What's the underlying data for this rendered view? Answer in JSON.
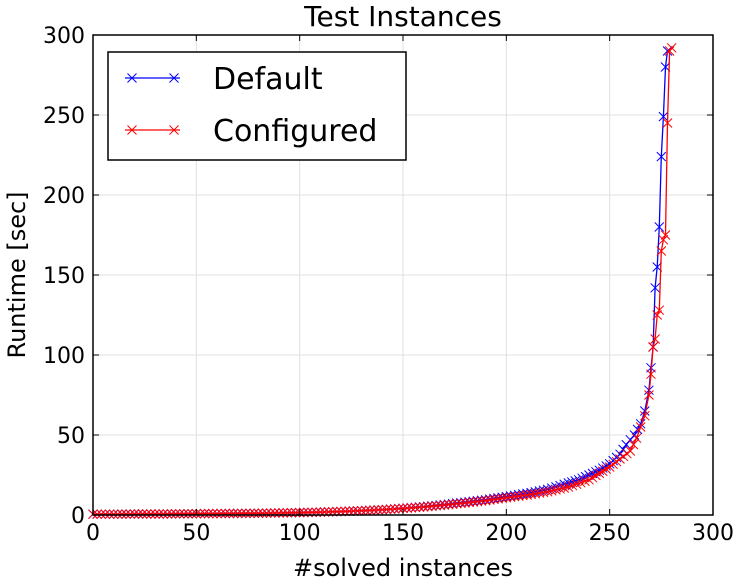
{
  "chart_data": {
    "type": "line",
    "title": "Test Instances",
    "xlabel": "#solved instances",
    "ylabel": "Runtime [sec]",
    "xlim": [
      0,
      300
    ],
    "ylim": [
      0,
      300
    ],
    "xticks": [
      0,
      50,
      100,
      150,
      200,
      250,
      300
    ],
    "yticks": [
      0,
      50,
      100,
      150,
      200,
      250,
      300
    ],
    "grid": true,
    "legend_position": "top-left",
    "marker": "x",
    "series": [
      {
        "name": "Default",
        "color": "#0000ff",
        "points": [
          [
            0,
            0.5
          ],
          [
            10,
            0.5
          ],
          [
            20,
            0.6
          ],
          [
            30,
            0.6
          ],
          [
            40,
            0.7
          ],
          [
            50,
            0.8
          ],
          [
            60,
            0.9
          ],
          [
            70,
            1.0
          ],
          [
            80,
            1.1
          ],
          [
            90,
            1.3
          ],
          [
            100,
            1.5
          ],
          [
            110,
            1.8
          ],
          [
            120,
            2.2
          ],
          [
            130,
            2.7
          ],
          [
            140,
            3.3
          ],
          [
            150,
            4.2
          ],
          [
            160,
            5.2
          ],
          [
            170,
            6.5
          ],
          [
            180,
            8
          ],
          [
            190,
            9.5
          ],
          [
            200,
            11.5
          ],
          [
            210,
            13.5
          ],
          [
            220,
            16
          ],
          [
            230,
            20
          ],
          [
            235,
            22
          ],
          [
            240,
            25
          ],
          [
            245,
            28
          ],
          [
            250,
            32
          ],
          [
            255,
            38
          ],
          [
            258,
            44
          ],
          [
            262,
            50
          ],
          [
            265,
            57
          ],
          [
            267,
            65
          ],
          [
            269,
            78
          ],
          [
            270,
            92
          ],
          [
            271,
            105
          ],
          [
            272,
            142
          ],
          [
            273,
            155
          ],
          [
            274,
            180
          ],
          [
            275,
            224
          ],
          [
            276,
            249
          ],
          [
            277,
            280
          ],
          [
            278,
            290
          ]
        ]
      },
      {
        "name": "Configured",
        "color": "#ff0000",
        "points": [
          [
            0,
            0.5
          ],
          [
            10,
            0.5
          ],
          [
            20,
            0.6
          ],
          [
            30,
            0.6
          ],
          [
            40,
            0.7
          ],
          [
            50,
            0.8
          ],
          [
            60,
            0.9
          ],
          [
            70,
            1.0
          ],
          [
            80,
            1.1
          ],
          [
            90,
            1.3
          ],
          [
            100,
            1.5
          ],
          [
            110,
            1.8
          ],
          [
            120,
            2.2
          ],
          [
            130,
            2.7
          ],
          [
            140,
            3.3
          ],
          [
            150,
            4.1
          ],
          [
            160,
            5
          ],
          [
            170,
            6.2
          ],
          [
            180,
            7.5
          ],
          [
            190,
            9
          ],
          [
            200,
            10.8
          ],
          [
            210,
            12.5
          ],
          [
            220,
            14.5
          ],
          [
            230,
            17.5
          ],
          [
            240,
            22
          ],
          [
            245,
            26
          ],
          [
            250,
            30
          ],
          [
            255,
            35
          ],
          [
            260,
            40
          ],
          [
            263,
            48
          ],
          [
            265,
            55
          ],
          [
            267,
            62
          ],
          [
            269,
            75
          ],
          [
            270,
            88
          ],
          [
            271,
            105
          ],
          [
            272,
            110
          ],
          [
            273,
            125
          ],
          [
            274,
            128
          ],
          [
            275,
            165
          ],
          [
            276,
            172
          ],
          [
            277,
            175
          ],
          [
            278,
            245
          ],
          [
            279,
            290
          ],
          [
            280,
            292
          ]
        ]
      }
    ]
  }
}
